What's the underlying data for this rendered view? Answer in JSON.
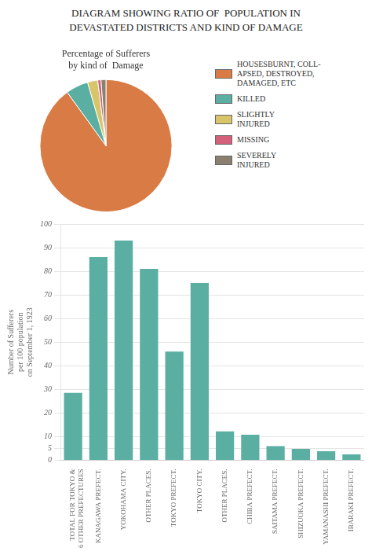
{
  "chart_data": [
    {
      "type": "bar",
      "title": "DIAGRAM SHOWING RATIO OF  POPULATION IN\nDEVASTATED DISTRICTS AND KIND OF DAMAGE",
      "ylabel": "Number of Sufferers\nper 100 population\non September 1, 1923",
      "categories": [
        "TOTAL FOR TOKYO &\n6 OTHER PREFECTURES",
        "KANAGAWA PREFECT.",
        "YOKOHAMA CITY.",
        "OTHER PLACES.",
        "TOKYO PREFECT.",
        "TOKYO CITY.",
        "OTHER PLACES.",
        "CHIBA PREFECT.",
        "SAITAMA PREFECT.",
        "SHIZUOKA PREFECT.",
        "YAMANASHI PREFECT.",
        "IBARAKI PREFECT."
      ],
      "values": [
        28.5,
        86.0,
        93.0,
        81.0,
        46.0,
        75.0,
        12.2,
        10.8,
        6.0,
        4.8,
        3.8,
        2.5
      ],
      "color": "#5aafa2",
      "ylim": [
        0,
        100
      ],
      "yticks": [
        0,
        5,
        10,
        20,
        30,
        40,
        50,
        60,
        70,
        80,
        90,
        100
      ],
      "grid": true
    },
    {
      "type": "pie",
      "title": "Percentage of Sufferers\nby kind of  Damage",
      "categories": [
        "HOUSESBURNT, COLL-\nAPSED, DESTROYED,\nDAMAGED, ETC",
        "KILLED",
        "SLIGHTLY\nINJURED",
        "MISSING",
        "SEVERELY\nINJURED"
      ],
      "values": [
        90.0,
        5.5,
        2.5,
        0.8,
        1.2
      ],
      "colors": [
        "#d97b45",
        "#5aafa2",
        "#d8c56a",
        "#d4607a",
        "#8a8070"
      ],
      "legend": "right"
    }
  ]
}
